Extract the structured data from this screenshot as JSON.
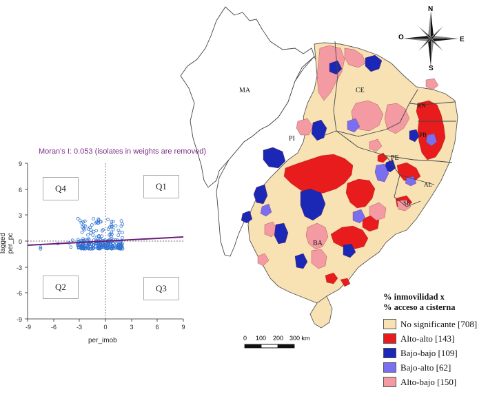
{
  "scatter": {
    "title": "Moran's I: 0.053 (isolates in weights are removed)",
    "x_label": "per_imob",
    "y_label": "lagged per_pc",
    "x_ticks": [
      "-9",
      "-6",
      "-3",
      "0",
      "3",
      "6",
      "9"
    ],
    "y_ticks": [
      "9",
      "6",
      "3",
      "0",
      "-3",
      "-6",
      "-9"
    ],
    "quadrants": {
      "q1": "Q1",
      "q2": "Q2",
      "q3": "Q3",
      "q4": "Q4"
    },
    "moran_i": 0.053,
    "colors": {
      "points": "#2d6fd1",
      "line": "#6a1b7a",
      "title": "#7b2f86"
    }
  },
  "map": {
    "state_labels": {
      "ma": "MA",
      "pi": "PI",
      "ce": "CE",
      "rn": "RN",
      "pb": "PB",
      "pe": "PE",
      "al": "AL",
      "se": "SE",
      "ba": "BA"
    },
    "compass": {
      "n": "N",
      "s": "S",
      "e": "E",
      "o": "O"
    },
    "scale": {
      "label_0": "0",
      "label_100": "100",
      "label_200": "200",
      "label_300": "300 km"
    }
  },
  "legend": {
    "title_line1": "% inmovilidad x",
    "title_line2": "% acceso a cisterna",
    "items": [
      {
        "label": "No significante [708]",
        "color": "#f8e2b4"
      },
      {
        "label": "Alto-alto [143]",
        "color": "#e81c1c"
      },
      {
        "label": "Bajo-bajo [109]",
        "color": "#1b27b5"
      },
      {
        "label": "Bajo-alto [62]",
        "color": "#7a6ff0"
      },
      {
        "label": "Alto-bajo [150]",
        "color": "#f39aa3"
      }
    ]
  }
}
